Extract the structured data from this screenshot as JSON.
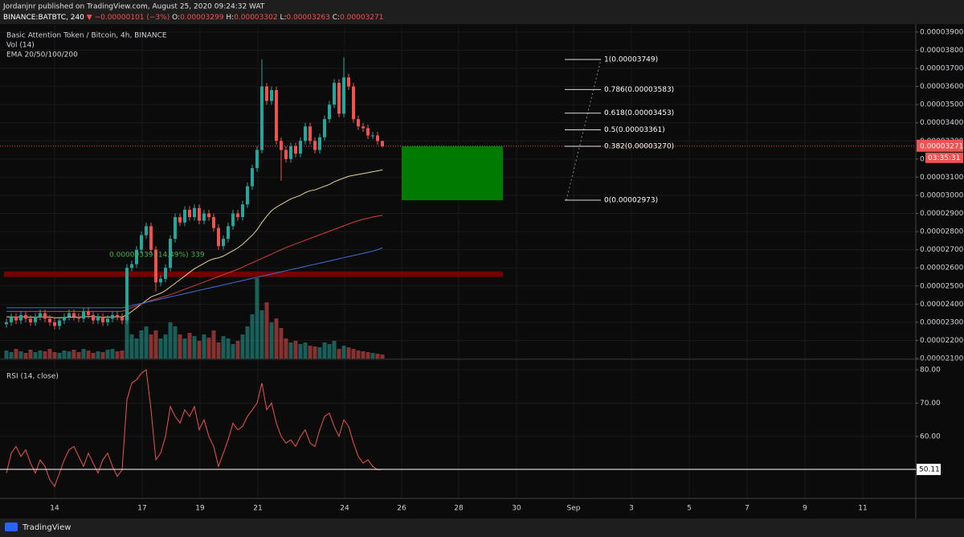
{
  "header": {
    "publisher": "Jordanjnr published on TradingView.com, August 25, 2020 09:24:32 WAT",
    "symbol": "BINANCE:BATBTC, 240",
    "change": "▼ −0.00000101 (−3%)",
    "ohlc_labels": [
      "O:",
      "H:",
      "L:",
      "C:"
    ]
  },
  "footer": "TradingView",
  "chart_data": [
    {
      "type": "candlestick",
      "title": "Basic Attention Token / Bitcoin, 4h, BINANCE",
      "x_labels": [
        "14",
        "17",
        "19",
        "21",
        "24",
        "26",
        "28",
        "30",
        "Sep",
        "3",
        "5",
        "7",
        "9",
        "11"
      ],
      "open": [
        2.29e-05,
        2.3e-05,
        2.33e-05,
        2.31e-05,
        2.34e-05,
        2.32e-05,
        2.3e-05,
        2.33e-05,
        2.35e-05,
        2.32e-05,
        2.3e-05,
        2.28e-05,
        2.31e-05,
        2.33e-05,
        2.35e-05,
        2.33e-05,
        2.32e-05,
        2.36e-05,
        2.34e-05,
        2.31e-05,
        2.33e-05,
        2.3e-05,
        2.32e-05,
        2.34e-05,
        2.33e-05,
        2.31e-05,
        2.6e-05,
        2.62e-05,
        2.7e-05,
        2.78e-05,
        2.83e-05,
        2.7e-05,
        2.52e-05,
        2.54e-05,
        2.6e-05,
        2.76e-05,
        2.88e-05,
        2.85e-05,
        2.92e-05,
        2.88e-05,
        2.93e-05,
        2.86e-05,
        2.9e-05,
        2.88e-05,
        2.82e-05,
        2.72e-05,
        2.76e-05,
        2.83e-05,
        2.9e-05,
        2.88e-05,
        2.95e-05,
        3.05e-05,
        3.15e-05,
        3.25e-05,
        3.6e-05,
        3.52e-05,
        3.58e-05,
        3.3e-05,
        3.25e-05,
        3.2e-05,
        3.27e-05,
        3.23e-05,
        3.3e-05,
        3.38e-05,
        3.3e-05,
        3.25e-05,
        3.32e-05,
        3.42e-05,
        3.5e-05,
        3.62e-05,
        3.45e-05,
        3.65e-05,
        3.6e-05,
        3.42e-05,
        3.38e-05,
        3.37e-05,
        3.33e-05,
        3.33e-05,
        3.299e-05
      ],
      "high": [
        2.32e-05,
        2.35e-05,
        2.35e-05,
        2.36e-05,
        2.36e-05,
        2.34e-05,
        2.35e-05,
        2.37e-05,
        2.37e-05,
        2.34e-05,
        2.32e-05,
        2.33e-05,
        2.35e-05,
        2.37e-05,
        2.37e-05,
        2.35e-05,
        2.38e-05,
        2.38e-05,
        2.36e-05,
        2.35e-05,
        2.35e-05,
        2.34e-05,
        2.36e-05,
        2.36e-05,
        2.35e-05,
        2.62e-05,
        2.64e-05,
        2.72e-05,
        2.8e-05,
        2.85e-05,
        2.85e-05,
        2.72e-05,
        2.56e-05,
        2.62e-05,
        2.78e-05,
        2.9e-05,
        2.9e-05,
        2.94e-05,
        2.94e-05,
        2.95e-05,
        2.95e-05,
        2.92e-05,
        2.92e-05,
        2.9e-05,
        2.84e-05,
        2.78e-05,
        2.85e-05,
        2.92e-05,
        2.92e-05,
        2.97e-05,
        3.07e-05,
        3.17e-05,
        3.27e-05,
        3.75e-05,
        3.62e-05,
        3.6e-05,
        3.6e-05,
        3.32e-05,
        3.27e-05,
        3.29e-05,
        3.29e-05,
        3.32e-05,
        3.4e-05,
        3.4e-05,
        3.32e-05,
        3.34e-05,
        3.44e-05,
        3.52e-05,
        3.64e-05,
        3.64e-05,
        3.76e-05,
        3.67e-05,
        3.62e-05,
        3.44e-05,
        3.4e-05,
        3.39e-05,
        3.35e-05,
        3.35e-05,
        3.302e-05
      ],
      "low": [
        2.27e-05,
        2.28e-05,
        2.29e-05,
        2.29e-05,
        2.3e-05,
        2.28e-05,
        2.28e-05,
        2.31e-05,
        2.3e-05,
        2.28e-05,
        2.26e-05,
        2.26e-05,
        2.29e-05,
        2.31e-05,
        2.31e-05,
        2.3e-05,
        2.3e-05,
        2.32e-05,
        2.29e-05,
        2.29e-05,
        2.28e-05,
        2.28e-05,
        2.3e-05,
        2.31e-05,
        2.29e-05,
        2.29e-05,
        2.58e-05,
        2.6e-05,
        2.68e-05,
        2.76e-05,
        2.68e-05,
        2.47e-05,
        2.5e-05,
        2.52e-05,
        2.58e-05,
        2.74e-05,
        2.83e-05,
        2.83e-05,
        2.86e-05,
        2.86e-05,
        2.84e-05,
        2.84e-05,
        2.86e-05,
        2.8e-05,
        2.7e-05,
        2.7e-05,
        2.74e-05,
        2.81e-05,
        2.86e-05,
        2.86e-05,
        2.93e-05,
        3.03e-05,
        3.13e-05,
        3.23e-05,
        3.5e-05,
        3.5e-05,
        3.28e-05,
        3.08e-05,
        3.18e-05,
        3.18e-05,
        3.21e-05,
        3.21e-05,
        3.28e-05,
        3.28e-05,
        3.23e-05,
        3.23e-05,
        3.3e-05,
        3.4e-05,
        3.48e-05,
        3.43e-05,
        3.43e-05,
        3.58e-05,
        3.4e-05,
        3.36e-05,
        3.35e-05,
        3.31e-05,
        3.31e-05,
        3.279e-05,
        3.263e-05
      ],
      "close": [
        2.3e-05,
        2.33e-05,
        2.31e-05,
        2.34e-05,
        2.32e-05,
        2.3e-05,
        2.33e-05,
        2.35e-05,
        2.32e-05,
        2.3e-05,
        2.28e-05,
        2.31e-05,
        2.33e-05,
        2.35e-05,
        2.33e-05,
        2.32e-05,
        2.36e-05,
        2.34e-05,
        2.31e-05,
        2.33e-05,
        2.3e-05,
        2.32e-05,
        2.34e-05,
        2.33e-05,
        2.31e-05,
        2.6e-05,
        2.62e-05,
        2.7e-05,
        2.78e-05,
        2.83e-05,
        2.7e-05,
        2.52e-05,
        2.54e-05,
        2.6e-05,
        2.76e-05,
        2.88e-05,
        2.85e-05,
        2.92e-05,
        2.88e-05,
        2.93e-05,
        2.86e-05,
        2.9e-05,
        2.88e-05,
        2.82e-05,
        2.72e-05,
        2.76e-05,
        2.83e-05,
        2.9e-05,
        2.88e-05,
        2.95e-05,
        3.05e-05,
        3.15e-05,
        3.25e-05,
        3.6e-05,
        3.52e-05,
        3.58e-05,
        3.3e-05,
        3.25e-05,
        3.2e-05,
        3.27e-05,
        3.23e-05,
        3.3e-05,
        3.38e-05,
        3.3e-05,
        3.25e-05,
        3.32e-05,
        3.42e-05,
        3.5e-05,
        3.62e-05,
        3.45e-05,
        3.65e-05,
        3.6e-05,
        3.42e-05,
        3.38e-05,
        3.37e-05,
        3.33e-05,
        3.33e-05,
        3.299e-05,
        3.271e-05
      ],
      "colors": {
        "up": "#26a69a",
        "down": "#ef5350"
      },
      "ylim": [
        2.1e-05,
        3.935e-05
      ],
      "yticks": [
        {
          "value": 3.9e-05,
          "label": "0.00003900"
        },
        {
          "value": 3.8e-05,
          "label": "0.00003800"
        },
        {
          "value": 3.7e-05,
          "label": "0.00003700"
        },
        {
          "value": 3.6e-05,
          "label": "0.00003600"
        },
        {
          "value": 3.5e-05,
          "label": "0.00003500"
        },
        {
          "value": 3.4e-05,
          "label": "0.00003400"
        },
        {
          "value": 3.3e-05,
          "label": "0.00003300"
        },
        {
          "value": 3.2e-05,
          "label": "0.00003200"
        },
        {
          "value": 3.1e-05,
          "label": "0.00003100"
        },
        {
          "value": 3e-05,
          "label": "0.00003000"
        },
        {
          "value": 2.9e-05,
          "label": "0.00002900"
        },
        {
          "value": 2.8e-05,
          "label": "0.00002800"
        },
        {
          "value": 2.7e-05,
          "label": "0.00002700"
        },
        {
          "value": 2.6e-05,
          "label": "0.00002600"
        },
        {
          "value": 2.5e-05,
          "label": "0.00002500"
        },
        {
          "value": 2.4e-05,
          "label": "0.00002400"
        },
        {
          "value": 2.3e-05,
          "label": "0.00002300"
        },
        {
          "value": 2.2e-05,
          "label": "0.00002200"
        },
        {
          "value": 2.1e-05,
          "label": "0.00002100"
        }
      ],
      "grid": true,
      "countdown": "03:35:31",
      "volume": {
        "name": "Vol (14)",
        "values": [
          10,
          8,
          12,
          9,
          7,
          11,
          8,
          10,
          9,
          12,
          8,
          7,
          10,
          9,
          11,
          8,
          12,
          10,
          7,
          9,
          8,
          11,
          12,
          9,
          10,
          60,
          30,
          25,
          35,
          40,
          30,
          35,
          25,
          30,
          45,
          40,
          30,
          25,
          32,
          28,
          22,
          30,
          26,
          35,
          20,
          28,
          25,
          18,
          22,
          30,
          40,
          55,
          100,
          60,
          70,
          45,
          50,
          38,
          25,
          20,
          22,
          18,
          20,
          16,
          15,
          14,
          20,
          18,
          22,
          12,
          16,
          14,
          12,
          10,
          9,
          8,
          7,
          6,
          5
        ]
      },
      "ema": {
        "name": "EMA 20/50/100/200",
        "series": [
          {
            "color": "#e6d58a",
            "values": [
              2.33e-05,
              2.33e-05,
              2.328e-05,
              2.33e-05,
              2.33e-05,
              2.328e-05,
              2.328e-05,
              2.33e-05,
              2.33e-05,
              2.328e-05,
              2.325e-05,
              2.325e-05,
              2.326e-05,
              2.328e-05,
              2.328e-05,
              2.328e-05,
              2.33e-05,
              2.332e-05,
              2.33e-05,
              2.33e-05,
              2.328e-05,
              2.328e-05,
              2.33e-05,
              2.33e-05,
              2.33e-05,
              2.34e-05,
              2.36e-05,
              2.38e-05,
              2.4e-05,
              2.42e-05,
              2.44e-05,
              2.45e-05,
              2.46e-05,
              2.475e-05,
              2.495e-05,
              2.515e-05,
              2.535e-05,
              2.555e-05,
              2.575e-05,
              2.595e-05,
              2.61e-05,
              2.625e-05,
              2.64e-05,
              2.65e-05,
              2.655e-05,
              2.665e-05,
              2.68e-05,
              2.695e-05,
              2.71e-05,
              2.73e-05,
              2.755e-05,
              2.78e-05,
              2.81e-05,
              2.85e-05,
              2.885e-05,
              2.915e-05,
              2.935e-05,
              2.95e-05,
              2.965e-05,
              2.98e-05,
              2.99e-05,
              3e-05,
              3.015e-05,
              3.025e-05,
              3.03e-05,
              3.04e-05,
              3.05e-05,
              3.06e-05,
              3.075e-05,
              3.085e-05,
              3.095e-05,
              3.105e-05,
              3.11e-05,
              3.115e-05,
              3.12e-05,
              3.125e-05,
              3.13e-05,
              3.135e-05,
              3.14e-05
            ]
          },
          {
            "color": "#d2403a",
            "values": [
              2.36e-05,
              2.36e-05,
              2.36e-05,
              2.36e-05,
              2.36e-05,
              2.36e-05,
              2.36e-05,
              2.36e-05,
              2.36e-05,
              2.36e-05,
              2.36e-05,
              2.36e-05,
              2.36e-05,
              2.36e-05,
              2.36e-05,
              2.36e-05,
              2.36e-05,
              2.36e-05,
              2.36e-05,
              2.36e-05,
              2.36e-05,
              2.36e-05,
              2.36e-05,
              2.36e-05,
              2.36e-05,
              2.37e-05,
              2.38e-05,
              2.39e-05,
              2.4e-05,
              2.41e-05,
              2.42e-05,
              2.428e-05,
              2.436e-05,
              2.444e-05,
              2.452e-05,
              2.462e-05,
              2.472e-05,
              2.482e-05,
              2.492e-05,
              2.502e-05,
              2.512e-05,
              2.522e-05,
              2.532e-05,
              2.542e-05,
              2.552e-05,
              2.562e-05,
              2.572e-05,
              2.582e-05,
              2.592e-05,
              2.604e-05,
              2.616e-05,
              2.628e-05,
              2.64e-05,
              2.652e-05,
              2.664e-05,
              2.676e-05,
              2.688e-05,
              2.7e-05,
              2.712e-05,
              2.722e-05,
              2.732e-05,
              2.742e-05,
              2.752e-05,
              2.762e-05,
              2.772e-05,
              2.782e-05,
              2.792e-05,
              2.802e-05,
              2.812e-05,
              2.822e-05,
              2.832e-05,
              2.842e-05,
              2.852e-05,
              2.86e-05,
              2.868e-05,
              2.874e-05,
              2.88e-05,
              2.885e-05,
              2.89e-05
            ]
          },
          {
            "color": "#3f6fd8",
            "values": [
              2.38e-05,
              2.38e-05,
              2.38e-05,
              2.38e-05,
              2.38e-05,
              2.38e-05,
              2.38e-05,
              2.38e-05,
              2.38e-05,
              2.38e-05,
              2.38e-05,
              2.38e-05,
              2.38e-05,
              2.38e-05,
              2.38e-05,
              2.38e-05,
              2.38e-05,
              2.38e-05,
              2.38e-05,
              2.38e-05,
              2.38e-05,
              2.38e-05,
              2.38e-05,
              2.38e-05,
              2.38e-05,
              2.385e-05,
              2.392e-05,
              2.398e-05,
              2.404e-05,
              2.41e-05,
              2.416e-05,
              2.422e-05,
              2.428e-05,
              2.434e-05,
              2.44e-05,
              2.446e-05,
              2.452e-05,
              2.458e-05,
              2.464e-05,
              2.47e-05,
              2.476e-05,
              2.482e-05,
              2.488e-05,
              2.494e-05,
              2.5e-05,
              2.506e-05,
              2.512e-05,
              2.518e-05,
              2.524e-05,
              2.53e-05,
              2.536e-05,
              2.542e-05,
              2.548e-05,
              2.554e-05,
              2.56e-05,
              2.566e-05,
              2.572e-05,
              2.578e-05,
              2.584e-05,
              2.59e-05,
              2.596e-05,
              2.602e-05,
              2.608e-05,
              2.614e-05,
              2.62e-05,
              2.626e-05,
              2.632e-05,
              2.638e-05,
              2.644e-05,
              2.65e-05,
              2.656e-05,
              2.662e-05,
              2.668e-05,
              2.674e-05,
              2.68e-05,
              2.686e-05,
              2.692e-05,
              2.7e-05,
              2.71e-05
            ]
          }
        ]
      },
      "fib": [
        {
          "label": "1(0.00003749)",
          "value": 3.749e-05
        },
        {
          "label": "0.786(0.00003583)",
          "value": 3.583e-05
        },
        {
          "label": "0.618(0.00003453)",
          "value": 3.453e-05
        },
        {
          "label": "0.5(0.00003361)",
          "value": 3.361e-05
        },
        {
          "label": "0.382(0.00003270)",
          "value": 3.27e-05
        },
        {
          "label": "0(0.00002973)",
          "value": 2.973e-05
        }
      ],
      "zone": [
        2.55e-05,
        2.58e-05
      ],
      "measure_label": "0.00000339 (14.49%) 339"
    },
    {
      "type": "line",
      "title": "RSI (14, close)",
      "color": "#ef5350",
      "values": [
        49,
        55,
        57,
        54,
        56,
        52,
        49,
        53,
        51,
        47,
        45,
        49,
        53,
        56,
        57,
        54,
        51,
        55,
        52,
        49,
        53,
        55,
        51,
        48,
        50,
        71,
        76,
        77,
        79,
        80,
        68,
        53,
        55,
        60,
        69,
        66,
        64,
        68,
        66,
        69,
        62,
        65,
        60,
        57,
        51,
        55,
        59,
        64,
        62,
        63,
        66,
        68,
        70,
        76,
        68,
        70,
        64,
        60,
        58,
        59,
        57,
        60,
        62,
        58,
        57,
        62,
        66,
        67,
        63,
        60,
        65,
        63,
        58,
        54,
        52,
        53,
        51,
        50,
        50.11
      ],
      "ylim": [
        41.4,
        82.9
      ],
      "yticks": [
        {
          "value": 80,
          "label": "80.00"
        },
        {
          "value": 70,
          "label": "70.00"
        },
        {
          "value": 60,
          "label": "60.00"
        }
      ]
    }
  ]
}
